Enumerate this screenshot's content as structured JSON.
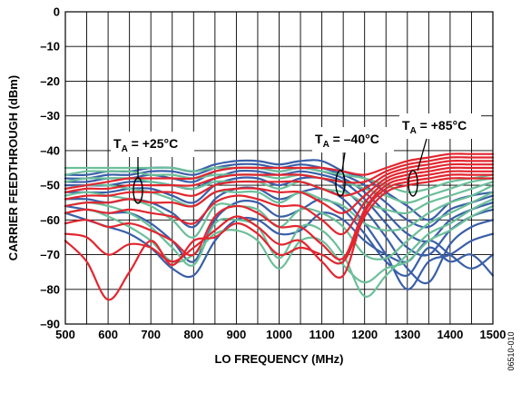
{
  "chart_data": {
    "type": "line",
    "xlabel": "LO FREQUENCY (MHz)",
    "ylabel": "CARRIER FEEDTHROUGH (dBm)",
    "xlim": [
      500,
      1500
    ],
    "ylim": [
      -90,
      0
    ],
    "xticks": [
      "500",
      "600",
      "700",
      "800",
      "900",
      "1000",
      "1100",
      "1200",
      "1300",
      "1400",
      "1500"
    ],
    "yticks": [
      "0",
      "–10",
      "–20",
      "–30",
      "–40",
      "–50",
      "–60",
      "–70",
      "–80",
      "–90"
    ],
    "grid": true,
    "figure_id": "06510-010",
    "colors": {
      "cold": "#3a5fa8",
      "room": "#6cbf9a",
      "hot": "#e2262f"
    },
    "annotations": [
      {
        "label": "T",
        "sub": "A",
        "value": " = +25°C",
        "group": "room"
      },
      {
        "label": "T",
        "sub": "A",
        "value": " = –40°C",
        "group": "cold"
      },
      {
        "label": "T",
        "sub": "A",
        "value": " = +85°C",
        "group": "hot"
      }
    ],
    "series_groups": [
      {
        "group": "cold",
        "x": [
          500,
          550,
          600,
          650,
          700,
          750,
          800,
          850,
          900,
          950,
          1000,
          1050,
          1100,
          1150,
          1200,
          1250,
          1300,
          1350,
          1400,
          1450,
          1500
        ],
        "curves": [
          [
            -47,
            -47,
            -46,
            -46,
            -45,
            -45,
            -46,
            -44,
            -43,
            -43,
            -44,
            -43,
            -43,
            -46,
            -48,
            -52,
            -56,
            -60,
            -55,
            -53,
            -52
          ],
          [
            -48,
            -48,
            -47,
            -47,
            -46,
            -46,
            -47,
            -45,
            -44,
            -44,
            -45,
            -44,
            -45,
            -47,
            -50,
            -55,
            -60,
            -62,
            -57,
            -55,
            -53
          ],
          [
            -49,
            -49,
            -48,
            -48,
            -47,
            -48,
            -49,
            -46,
            -45,
            -45,
            -46,
            -45,
            -46,
            -48,
            -52,
            -58,
            -64,
            -66,
            -60,
            -57,
            -55
          ],
          [
            -50,
            -50,
            -50,
            -49,
            -49,
            -50,
            -51,
            -48,
            -46,
            -46,
            -47,
            -46,
            -47,
            -49,
            -54,
            -61,
            -68,
            -70,
            -63,
            -59,
            -57
          ],
          [
            -52,
            -52,
            -52,
            -51,
            -51,
            -53,
            -55,
            -50,
            -48,
            -48,
            -50,
            -48,
            -48,
            -51,
            -57,
            -65,
            -74,
            -78,
            -67,
            -62,
            -60
          ],
          [
            -54,
            -54,
            -55,
            -54,
            -55,
            -58,
            -62,
            -54,
            -51,
            -51,
            -54,
            -52,
            -51,
            -54,
            -61,
            -70,
            -80,
            -72,
            -70,
            -66,
            -64
          ],
          [
            -56,
            -57,
            -58,
            -58,
            -61,
            -66,
            -72,
            -60,
            -55,
            -55,
            -59,
            -57,
            -54,
            -57,
            -64,
            -72,
            -76,
            -68,
            -72,
            -70,
            -76
          ],
          [
            -58,
            -60,
            -62,
            -64,
            -68,
            -74,
            -76,
            -66,
            -60,
            -60,
            -64,
            -63,
            -58,
            -60,
            -66,
            -70,
            -72,
            -66,
            -70,
            -74,
            -70
          ]
        ]
      },
      {
        "group": "room",
        "x": [
          500,
          550,
          600,
          650,
          700,
          750,
          800,
          850,
          900,
          950,
          1000,
          1050,
          1100,
          1150,
          1200,
          1250,
          1300,
          1350,
          1400,
          1450,
          1500
        ],
        "curves": [
          [
            -45,
            -45,
            -45,
            -45,
            -45,
            -45,
            -46,
            -45,
            -45,
            -45,
            -46,
            -45,
            -46,
            -47,
            -48,
            -50,
            -52,
            -51,
            -49,
            -48,
            -47
          ],
          [
            -47,
            -46,
            -46,
            -46,
            -47,
            -47,
            -48,
            -47,
            -47,
            -47,
            -48,
            -47,
            -48,
            -49,
            -51,
            -53,
            -55,
            -53,
            -51,
            -49,
            -48
          ],
          [
            -49,
            -48,
            -48,
            -48,
            -49,
            -50,
            -51,
            -49,
            -49,
            -49,
            -51,
            -49,
            -51,
            -52,
            -55,
            -57,
            -58,
            -55,
            -53,
            -51,
            -49
          ],
          [
            -51,
            -50,
            -50,
            -51,
            -52,
            -54,
            -56,
            -52,
            -52,
            -52,
            -55,
            -52,
            -54,
            -56,
            -61,
            -63,
            -62,
            -58,
            -55,
            -53,
            -50
          ],
          [
            -53,
            -52,
            -53,
            -54,
            -56,
            -60,
            -65,
            -56,
            -56,
            -57,
            -62,
            -57,
            -58,
            -62,
            -70,
            -71,
            -66,
            -61,
            -58,
            -55,
            -52
          ],
          [
            -56,
            -55,
            -56,
            -58,
            -62,
            -68,
            -73,
            -61,
            -60,
            -62,
            -71,
            -62,
            -63,
            -70,
            -82,
            -76,
            -70,
            -64,
            -61,
            -57,
            -54
          ],
          [
            -58,
            -57,
            -59,
            -62,
            -66,
            -72,
            -70,
            -64,
            -63,
            -66,
            -74,
            -66,
            -66,
            -73,
            -78,
            -74,
            -72,
            -66,
            -63,
            -59,
            -56
          ]
        ]
      },
      {
        "group": "hot",
        "x": [
          500,
          550,
          600,
          650,
          700,
          750,
          800,
          850,
          900,
          950,
          1000,
          1050,
          1100,
          1150,
          1200,
          1250,
          1300,
          1350,
          1400,
          1450,
          1500
        ],
        "curves": [
          [
            -51,
            -50,
            -49,
            -48,
            -48,
            -48,
            -48,
            -46,
            -45,
            -45,
            -45,
            -45,
            -45,
            -46,
            -47,
            -45,
            -43,
            -42,
            -41,
            -41,
            -41
          ],
          [
            -52,
            -51,
            -51,
            -50,
            -50,
            -50,
            -50,
            -48,
            -47,
            -47,
            -47,
            -47,
            -48,
            -49,
            -49,
            -46,
            -44,
            -43,
            -42,
            -42,
            -42
          ],
          [
            -54,
            -53,
            -53,
            -52,
            -52,
            -52,
            -53,
            -50,
            -49,
            -49,
            -49,
            -49,
            -51,
            -53,
            -51,
            -47,
            -45,
            -44,
            -43,
            -43,
            -43
          ],
          [
            -56,
            -55,
            -55,
            -54,
            -55,
            -55,
            -56,
            -52,
            -51,
            -51,
            -52,
            -52,
            -55,
            -58,
            -53,
            -48,
            -46,
            -45,
            -44,
            -44,
            -44
          ],
          [
            -58,
            -57,
            -58,
            -57,
            -58,
            -59,
            -61,
            -55,
            -53,
            -54,
            -56,
            -56,
            -60,
            -64,
            -55,
            -49,
            -47,
            -46,
            -45,
            -45,
            -45
          ],
          [
            -61,
            -60,
            -62,
            -61,
            -63,
            -66,
            -70,
            -59,
            -56,
            -58,
            -62,
            -62,
            -67,
            -71,
            -57,
            -50,
            -48,
            -47,
            -46,
            -46,
            -46
          ],
          [
            -64,
            -65,
            -70,
            -67,
            -68,
            -72,
            -68,
            -63,
            -59,
            -62,
            -67,
            -66,
            -72,
            -76,
            -58,
            -51,
            -49,
            -48,
            -47,
            -47,
            -47
          ],
          [
            -66,
            -72,
            -83,
            -75,
            -66,
            -73,
            -66,
            -65,
            -61,
            -64,
            -70,
            -68,
            -70,
            -72,
            -59,
            -52,
            -50,
            -49,
            -48,
            -48,
            -48
          ]
        ]
      }
    ]
  }
}
